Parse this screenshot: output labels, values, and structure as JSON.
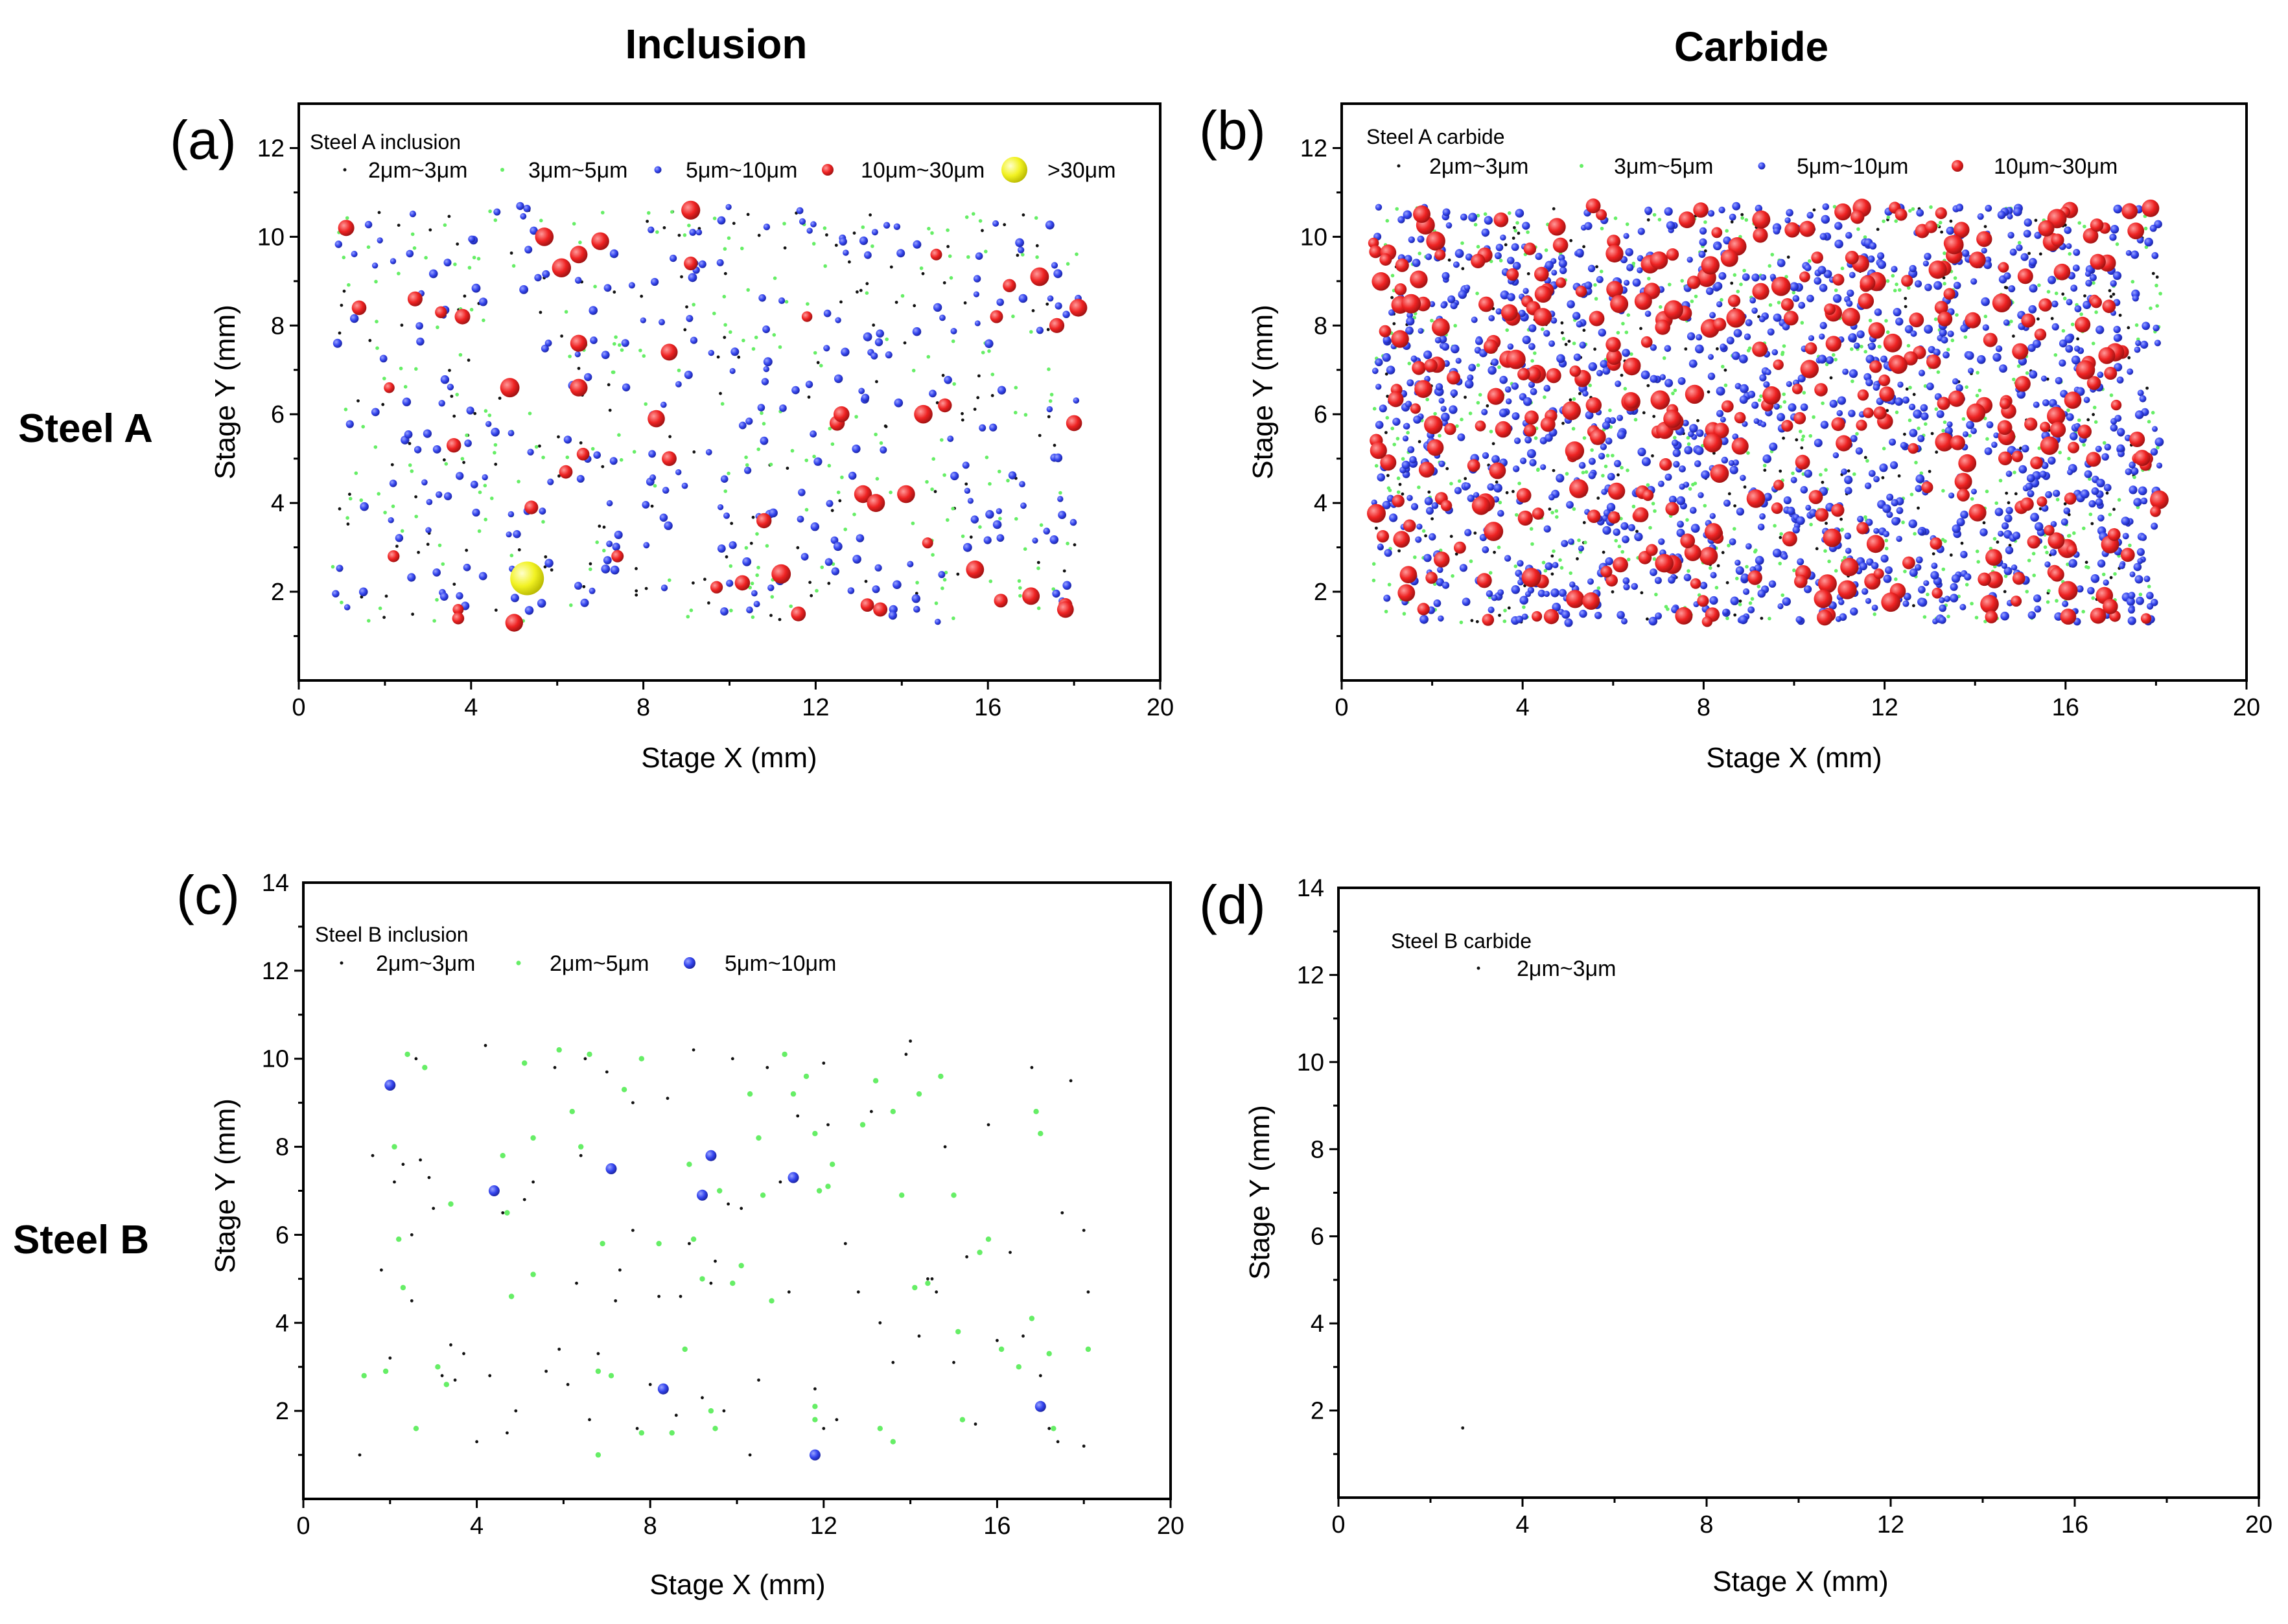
{
  "figure": {
    "column_titles": [
      "Inclusion",
      "Carbide"
    ],
    "row_titles": [
      "Steel A",
      "Steel B"
    ]
  },
  "categories": [
    {
      "key": "c1",
      "label": "2μm~3μm",
      "color": "#111111"
    },
    {
      "key": "c2a",
      "label": "3μm~5μm",
      "color": "#66ee66"
    },
    {
      "key": "c2b",
      "label": "2μm~5μm",
      "color": "#66ee66"
    },
    {
      "key": "c3",
      "label": "5μm~10μm",
      "color": "#3344ee"
    },
    {
      "key": "c4",
      "label": "10μm~30μm",
      "color": "#ee2222"
    },
    {
      "key": "c5",
      "label": ">30μm",
      "color": "#eeee22"
    }
  ],
  "chart_data": [
    {
      "panel": "(a)",
      "type": "scatter",
      "legend_title": "Steel A inclusion",
      "legend": [
        "2μm~3μm",
        "3μm~5μm",
        "5μm~10μm",
        "10μm~30μm",
        ">30μm"
      ],
      "xlabel": "Stage X (mm)",
      "ylabel": "Stage Y (mm)",
      "xlim": [
        0,
        20
      ],
      "ylim": [
        0,
        13
      ],
      "xticks": [
        "0",
        "4",
        "8",
        "12",
        "16",
        "20"
      ],
      "yticks": [
        "2",
        "4",
        "6",
        "8",
        "10",
        "12"
      ],
      "scatter_region": {
        "x": [
          0.7,
          18.1
        ],
        "y": [
          1.3,
          10.7
        ]
      },
      "point_counts": {
        "2μm~3μm": 170,
        "3μm~5μm": 260,
        "5μm~10μm": 290,
        "10μm~30μm": 0
      },
      "series": [
        {
          "name": "10μm~30μm",
          "points": [
            [
              1.1,
              10.2
            ],
            [
              1.4,
              8.4
            ],
            [
              2.1,
              6.6
            ],
            [
              2.2,
              2.8
            ],
            [
              2.7,
              8.6
            ],
            [
              3.3,
              8.3
            ],
            [
              3.6,
              5.3
            ],
            [
              3.7,
              1.6
            ],
            [
              3.7,
              1.4
            ],
            [
              3.8,
              8.2
            ],
            [
              4.9,
              6.6
            ],
            [
              5.0,
              1.3
            ],
            [
              5.4,
              3.9
            ],
            [
              5.7,
              10.0
            ],
            [
              6.1,
              9.3
            ],
            [
              6.2,
              4.7
            ],
            [
              6.5,
              9.6
            ],
            [
              6.5,
              7.6
            ],
            [
              6.5,
              6.6
            ],
            [
              6.6,
              5.1
            ],
            [
              7.0,
              9.9
            ],
            [
              7.4,
              2.8
            ],
            [
              8.3,
              5.9
            ],
            [
              8.6,
              7.4
            ],
            [
              8.6,
              5.0
            ],
            [
              9.1,
              9.4
            ],
            [
              9.1,
              10.6
            ],
            [
              9.7,
              2.1
            ],
            [
              10.3,
              2.2
            ],
            [
              10.8,
              3.6
            ],
            [
              11.2,
              2.4
            ],
            [
              11.6,
              1.5
            ],
            [
              11.8,
              8.2
            ],
            [
              12.5,
              5.8
            ],
            [
              12.6,
              6.0
            ],
            [
              13.1,
              4.2
            ],
            [
              13.4,
              4.0
            ],
            [
              13.5,
              1.6
            ],
            [
              14.5,
              6.0
            ],
            [
              14.6,
              3.1
            ],
            [
              14.8,
              9.6
            ],
            [
              15.0,
              6.2
            ],
            [
              15.7,
              2.5
            ],
            [
              16.2,
              8.2
            ],
            [
              16.3,
              1.8
            ],
            [
              16.5,
              8.9
            ],
            [
              17.0,
              1.9
            ],
            [
              17.2,
              9.1
            ],
            [
              17.6,
              8.0
            ],
            [
              17.8,
              1.7
            ],
            [
              18.0,
              5.8
            ],
            [
              18.1,
              8.4
            ],
            [
              17.8,
              1.6
            ],
            [
              13.2,
              1.7
            ],
            [
              14.1,
              4.2
            ]
          ]
        },
        {
          "name": ">30μm",
          "points": [
            [
              5.3,
              2.3
            ]
          ]
        }
      ]
    },
    {
      "panel": "(b)",
      "type": "scatter",
      "legend_title": "Steel A carbide",
      "legend": [
        "2μm~3μm",
        "3μm~5μm",
        "5μm~10μm",
        "10μm~30μm"
      ],
      "xlabel": "Stage X (mm)",
      "ylabel": "Stage Y (mm)",
      "xlim": [
        0,
        20
      ],
      "ylim": [
        0,
        13
      ],
      "xticks": [
        "0",
        "4",
        "8",
        "12",
        "16",
        "20"
      ],
      "yticks": [
        "2",
        "4",
        "6",
        "8",
        "10",
        "12"
      ],
      "scatter_region": {
        "x": [
          0.7,
          18.1
        ],
        "y": [
          1.3,
          10.7
        ]
      },
      "point_counts": {
        "2μm~3μm": 260,
        "3μm~5μm": 650,
        "5μm~10μm": 1250,
        "10μm~30μm": 380
      }
    },
    {
      "panel": "(c)",
      "type": "scatter",
      "legend_title": "Steel B inclusion",
      "legend": [
        "2μm~3μm",
        "2μm~5μm",
        "5μm~10μm"
      ],
      "xlabel": "Stage X (mm)",
      "ylabel": "Stage Y (mm)",
      "xlim": [
        0,
        20
      ],
      "ylim": [
        0,
        14
      ],
      "xticks": [
        "0",
        "4",
        "8",
        "12",
        "16",
        "20"
      ],
      "yticks": [
        "2",
        "4",
        "6",
        "8",
        "10",
        "12",
        "14"
      ],
      "series": [
        {
          "name": "2μm~3μm",
          "points": [
            [
              1.3,
              1.0
            ],
            [
              1.6,
              7.8
            ],
            [
              1.8,
              5.2
            ],
            [
              2.0,
              3.2
            ],
            [
              2.1,
              7.2
            ],
            [
              2.3,
              7.6
            ],
            [
              2.5,
              4.5
            ],
            [
              2.5,
              6.0
            ],
            [
              2.6,
              10.0
            ],
            [
              2.7,
              7.7
            ],
            [
              2.9,
              7.3
            ],
            [
              3.0,
              6.6
            ],
            [
              3.2,
              2.8
            ],
            [
              3.4,
              3.5
            ],
            [
              3.5,
              2.7
            ],
            [
              3.7,
              3.3
            ],
            [
              4.0,
              1.3
            ],
            [
              4.2,
              10.3
            ],
            [
              4.3,
              2.8
            ],
            [
              4.6,
              6.5
            ],
            [
              4.7,
              1.5
            ],
            [
              4.9,
              2.0
            ],
            [
              5.1,
              6.8
            ],
            [
              5.3,
              7.2
            ],
            [
              5.6,
              2.9
            ],
            [
              5.8,
              9.8
            ],
            [
              5.9,
              3.4
            ],
            [
              6.1,
              2.6
            ],
            [
              6.3,
              4.9
            ],
            [
              6.4,
              7.8
            ],
            [
              6.5,
              10.0
            ],
            [
              6.6,
              1.8
            ],
            [
              6.8,
              3.3
            ],
            [
              7.0,
              9.7
            ],
            [
              7.2,
              4.5
            ],
            [
              7.3,
              5.2
            ],
            [
              7.6,
              9.0
            ],
            [
              7.7,
              1.6
            ],
            [
              8.0,
              2.6
            ],
            [
              8.2,
              4.6
            ],
            [
              8.4,
              9.1
            ],
            [
              8.6,
              1.9
            ],
            [
              8.7,
              4.6
            ],
            [
              8.9,
              5.8
            ],
            [
              9.0,
              10.2
            ],
            [
              9.2,
              2.3
            ],
            [
              9.4,
              4.9
            ],
            [
              9.5,
              5.4
            ],
            [
              9.7,
              2.0
            ],
            [
              9.9,
              10.0
            ],
            [
              10.1,
              6.6
            ],
            [
              10.3,
              1.0
            ],
            [
              10.5,
              2.7
            ],
            [
              10.7,
              9.8
            ],
            [
              11.0,
              7.2
            ],
            [
              11.2,
              4.7
            ],
            [
              11.4,
              8.7
            ],
            [
              11.8,
              2.5
            ],
            [
              12.0,
              9.9
            ],
            [
              12.1,
              8.5
            ],
            [
              12.3,
              1.8
            ],
            [
              12.5,
              5.8
            ],
            [
              12.8,
              4.7
            ],
            [
              13.1,
              8.8
            ],
            [
              13.3,
              4.0
            ],
            [
              13.6,
              3.1
            ],
            [
              13.9,
              10.1
            ],
            [
              14.0,
              10.4
            ],
            [
              14.2,
              3.7
            ],
            [
              14.4,
              5.0
            ],
            [
              14.6,
              4.7
            ],
            [
              14.8,
              8.0
            ],
            [
              15.0,
              3.1
            ],
            [
              15.3,
              5.5
            ],
            [
              15.5,
              1.7
            ],
            [
              15.8,
              8.5
            ],
            [
              16.0,
              3.6
            ],
            [
              16.3,
              5.6
            ],
            [
              16.6,
              3.7
            ],
            [
              16.8,
              9.8
            ],
            [
              17.0,
              2.8
            ],
            [
              17.2,
              1.6
            ],
            [
              17.4,
              1.3
            ],
            [
              17.5,
              6.5
            ],
            [
              17.7,
              9.5
            ],
            [
              18.0,
              6.1
            ],
            [
              18.1,
              4.7
            ],
            [
              18.0,
              1.2
            ],
            [
              12.0,
              1.6
            ],
            [
              7.6,
              6.1
            ],
            [
              9.8,
              6.7
            ],
            [
              14.5,
              5.0
            ]
          ]
        },
        {
          "name": "2μm~5μm",
          "points": [
            [
              1.4,
              2.8
            ],
            [
              1.9,
              2.9
            ],
            [
              2.1,
              8.0
            ],
            [
              2.2,
              5.9
            ],
            [
              2.3,
              4.8
            ],
            [
              2.4,
              10.1
            ],
            [
              2.6,
              1.6
            ],
            [
              2.8,
              9.8
            ],
            [
              3.1,
              3.0
            ],
            [
              3.3,
              2.6
            ],
            [
              3.4,
              6.7
            ],
            [
              4.6,
              7.8
            ],
            [
              4.7,
              6.5
            ],
            [
              4.8,
              4.6
            ],
            [
              5.1,
              9.9
            ],
            [
              5.3,
              5.1
            ],
            [
              5.3,
              8.2
            ],
            [
              5.9,
              10.2
            ],
            [
              6.2,
              8.8
            ],
            [
              6.4,
              8.0
            ],
            [
              6.6,
              10.1
            ],
            [
              6.8,
              2.9
            ],
            [
              6.9,
              5.8
            ],
            [
              7.1,
              2.8
            ],
            [
              7.4,
              9.3
            ],
            [
              7.8,
              10.0
            ],
            [
              7.8,
              1.5
            ],
            [
              8.2,
              5.8
            ],
            [
              8.5,
              1.5
            ],
            [
              8.8,
              3.4
            ],
            [
              8.9,
              7.6
            ],
            [
              9.0,
              5.9
            ],
            [
              9.2,
              5.0
            ],
            [
              9.4,
              2.0
            ],
            [
              9.5,
              1.6
            ],
            [
              9.6,
              7.0
            ],
            [
              9.9,
              4.9
            ],
            [
              10.1,
              5.3
            ],
            [
              10.3,
              9.2
            ],
            [
              10.5,
              8.2
            ],
            [
              10.8,
              4.5
            ],
            [
              11.1,
              10.1
            ],
            [
              11.3,
              9.2
            ],
            [
              11.6,
              9.6
            ],
            [
              11.8,
              8.3
            ],
            [
              11.8,
              1.8
            ],
            [
              11.9,
              7.0
            ],
            [
              12.1,
              7.1
            ],
            [
              12.2,
              7.6
            ],
            [
              12.9,
              8.5
            ],
            [
              13.2,
              9.5
            ],
            [
              13.3,
              1.6
            ],
            [
              13.6,
              8.8
            ],
            [
              13.8,
              6.9
            ],
            [
              14.1,
              4.8
            ],
            [
              14.2,
              9.2
            ],
            [
              14.4,
              4.9
            ],
            [
              14.7,
              9.6
            ],
            [
              15.0,
              6.9
            ],
            [
              15.1,
              3.8
            ],
            [
              15.2,
              1.8
            ],
            [
              15.6,
              5.6
            ],
            [
              15.8,
              5.9
            ],
            [
              16.1,
              3.4
            ],
            [
              16.5,
              3.0
            ],
            [
              16.8,
              4.1
            ],
            [
              16.9,
              8.8
            ],
            [
              17.0,
              8.3
            ],
            [
              17.2,
              3.3
            ],
            [
              17.3,
              1.6
            ],
            [
              18.1,
              3.4
            ],
            [
              6.8,
              1.0
            ],
            [
              11.8,
              2.1
            ],
            [
              10.6,
              6.9
            ],
            [
              13.6,
              1.3
            ]
          ]
        },
        {
          "name": "5μm~10μm",
          "points": [
            [
              2.0,
              9.4
            ],
            [
              4.4,
              7.0
            ],
            [
              7.1,
              7.5
            ],
            [
              8.3,
              2.5
            ],
            [
              9.2,
              6.9
            ],
            [
              9.4,
              7.8
            ],
            [
              11.3,
              7.3
            ],
            [
              11.8,
              1.0
            ],
            [
              17.0,
              2.1
            ]
          ]
        }
      ]
    },
    {
      "panel": "(d)",
      "type": "scatter",
      "legend_title": "Steel B carbide",
      "legend": [
        "2μm~3μm"
      ],
      "xlabel": "Stage X (mm)",
      "ylabel": "Stage Y (mm)",
      "xlim": [
        0,
        20
      ],
      "ylim": [
        0,
        14
      ],
      "xticks": [
        "0",
        "4",
        "8",
        "12",
        "16",
        "20"
      ],
      "yticks": [
        "2",
        "4",
        "6",
        "8",
        "10",
        "12",
        "14"
      ],
      "series": [
        {
          "name": "2μm~3μm",
          "points": [
            [
              2.7,
              1.6
            ]
          ]
        }
      ]
    }
  ]
}
